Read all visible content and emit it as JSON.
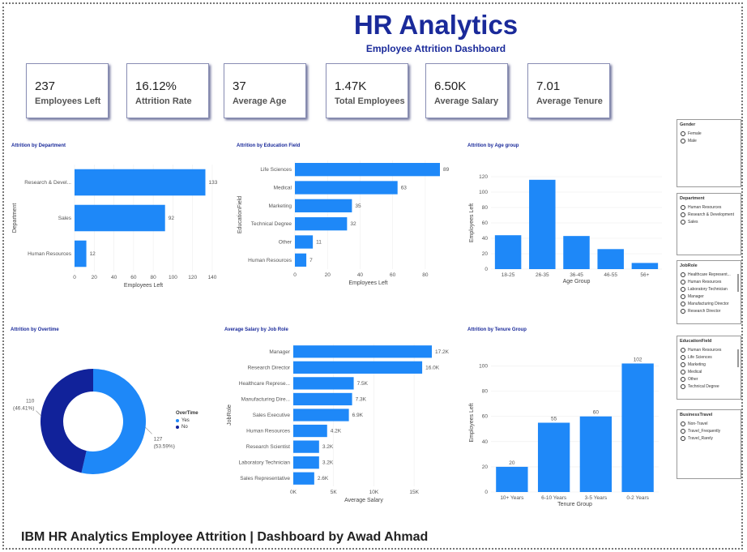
{
  "header": {
    "title": "HR Analytics",
    "subtitle": "Employee Attrition Dashboard"
  },
  "kpis": [
    {
      "value": "237",
      "label": "Employees Left"
    },
    {
      "value": "16.12%",
      "label": "Attrition Rate"
    },
    {
      "value": "37",
      "label": "Average Age"
    },
    {
      "value": "1.47K",
      "label": "Total Employees"
    },
    {
      "value": "6.50K",
      "label": "Average Salary"
    },
    {
      "value": "7.01",
      "label": "Average Tenure"
    }
  ],
  "colors": {
    "bar": "#1e88f8",
    "dark": "#11229a",
    "title": "#1a2a9a"
  },
  "chart_data": [
    {
      "id": "dept",
      "type": "bar",
      "orientation": "horizontal",
      "title": "Attrition by Department",
      "xlabel": "Employees Left",
      "ylabel": "Department",
      "categories": [
        "Research & Devel...",
        "Sales",
        "Human Resources"
      ],
      "values": [
        133,
        92,
        12
      ],
      "value_labels": [
        "133",
        "92",
        "12"
      ],
      "xlim": [
        0,
        140
      ],
      "ticks": [
        0,
        20,
        40,
        60,
        80,
        100,
        120,
        140
      ]
    },
    {
      "id": "edu",
      "type": "bar",
      "orientation": "horizontal",
      "title": "Attrition by Education Field",
      "xlabel": "Employees Left",
      "ylabel": "EducationField",
      "categories": [
        "Life Sciences",
        "Medical",
        "Marketing",
        "Technical Degree",
        "Other",
        "Human Resources"
      ],
      "values": [
        89,
        63,
        35,
        32,
        11,
        7
      ],
      "value_labels": [
        "89",
        "63",
        "35",
        "32",
        "11",
        "7"
      ],
      "xlim": [
        0,
        90
      ],
      "ticks": [
        0,
        20,
        40,
        60,
        80
      ]
    },
    {
      "id": "age",
      "type": "bar",
      "orientation": "vertical",
      "title": "Attrition by Age group",
      "xlabel": "Age Group",
      "ylabel": "Employees Left",
      "categories": [
        "18-25",
        "26-35",
        "36-45",
        "46-55",
        "56+"
      ],
      "values": [
        44,
        116,
        43,
        26,
        8
      ],
      "ylim": [
        0,
        120
      ],
      "ticks": [
        0,
        20,
        40,
        60,
        80,
        100,
        120
      ]
    },
    {
      "id": "overtime",
      "type": "pie",
      "donut": true,
      "title": "Attrition by Overtime",
      "legend_title": "OverTime",
      "slices": [
        {
          "name": "Yes",
          "value": 127,
          "pct": "(53.59%)"
        },
        {
          "name": "No",
          "value": 110,
          "pct": "(46.41%)"
        }
      ]
    },
    {
      "id": "salary",
      "type": "bar",
      "orientation": "horizontal",
      "title": "Average Salary by Job Role",
      "xlabel": "Average Salary",
      "ylabel": "JobRole",
      "categories": [
        "Manager",
        "Research Director",
        "Healthcare Represe...",
        "Manufacturing Dire...",
        "Sales Executive",
        "Human Resources",
        "Research Scientist",
        "Laboratory Technician",
        "Sales Representative"
      ],
      "values": [
        17200,
        16000,
        7500,
        7300,
        6900,
        4200,
        3200,
        3200,
        2600
      ],
      "value_labels": [
        "17.2K",
        "16.0K",
        "7.5K",
        "7.3K",
        "6.9K",
        "4.2K",
        "3.2K",
        "3.2K",
        "2.6K"
      ],
      "xlim": [
        0,
        17500
      ],
      "ticks": [
        0,
        5000,
        10000,
        15000
      ],
      "tick_labels": [
        "0K",
        "5K",
        "10K",
        "15K"
      ]
    },
    {
      "id": "tenure",
      "type": "bar",
      "orientation": "vertical",
      "title": "Attrition by Tenure Group",
      "xlabel": "Tenure Group",
      "ylabel": "Employees Left",
      "categories": [
        "10+ Years",
        "6-10 Years",
        "3-5 Years",
        "0-2 Years"
      ],
      "values": [
        20,
        55,
        60,
        102
      ],
      "value_labels": [
        "20",
        "55",
        "60",
        "102"
      ],
      "ylim": [
        0,
        110
      ],
      "ticks": [
        0,
        20,
        40,
        60,
        80,
        100
      ]
    }
  ],
  "slicers": [
    {
      "title": "Gender",
      "options": [
        "Female",
        "Male"
      ]
    },
    {
      "title": "Department",
      "options": [
        "Human Resources",
        "Research & Development",
        "Sales"
      ]
    },
    {
      "title": "JobRole",
      "options": [
        "Healthcare Represent...",
        "Human Resources",
        "Laboratory Technician",
        "Manager",
        "Manufacturing Director",
        "Research Director"
      ]
    },
    {
      "title": "EducationField",
      "options": [
        "Human Resources",
        "Life Sciences",
        "Marketing",
        "Medical",
        "Other",
        "Technical Degree"
      ]
    },
    {
      "title": "BusinessTravel",
      "options": [
        "Non-Travel",
        "Travel_Frequently",
        "Travel_Rarely"
      ]
    }
  ],
  "footer": "IBM HR Analytics Employee Attrition | Dashboard by Awad Ahmad"
}
